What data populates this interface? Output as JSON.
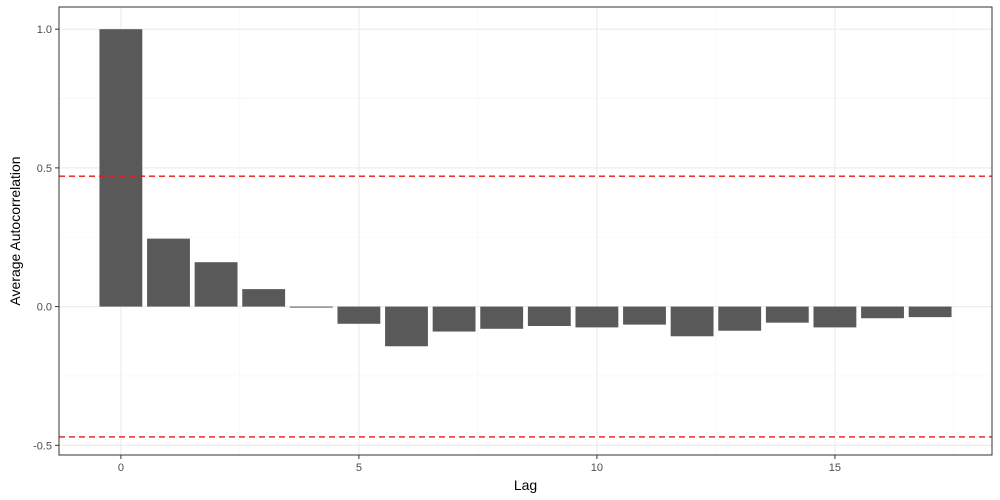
{
  "chart_data": {
    "type": "bar",
    "title": "",
    "xlabel": "Lag",
    "ylabel": "Average Autocorrelation",
    "x": [
      0,
      1,
      2,
      3,
      4,
      5,
      6,
      7,
      8,
      9,
      10,
      11,
      12,
      13,
      14,
      15,
      16,
      17
    ],
    "values": [
      1.0,
      0.245,
      0.16,
      0.063,
      -0.003,
      -0.062,
      -0.143,
      -0.09,
      -0.08,
      -0.07,
      -0.075,
      -0.065,
      -0.107,
      -0.087,
      -0.058,
      -0.075,
      -0.042,
      -0.038
    ],
    "xlim": [
      -1.3,
      18.3
    ],
    "ylim": [
      -0.535,
      1.08
    ],
    "x_ticks": [
      0,
      5,
      10,
      15
    ],
    "y_ticks": [
      -0.5,
      0.0,
      0.5,
      1.0
    ],
    "y_tick_labels": [
      "-0.5",
      "0.0",
      "0.5",
      "1.0"
    ],
    "y_minor_ticks": [
      -0.25,
      0.25,
      0.75
    ],
    "x_minor_ticks": [
      2.5,
      7.5,
      12.5,
      17.5
    ],
    "confidence_bounds": [
      0.47,
      -0.47
    ],
    "grid": true,
    "colors": {
      "bar": "#595959",
      "bound_line": "#e31a1c",
      "grid_major": "#ebebeb",
      "grid_minor": "#f5f5f5",
      "panel_border": "#333333",
      "background": "#ffffff"
    }
  }
}
